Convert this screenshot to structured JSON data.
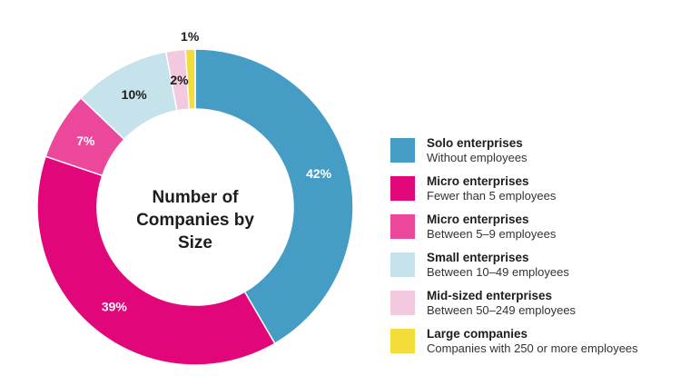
{
  "chart_data": {
    "type": "pie",
    "title": "Number of Companies by Size",
    "categories": [
      "Solo enterprises",
      "Micro enterprises",
      "Micro enterprises",
      "Small enterprises",
      "Mid-sized enterprises",
      "Large companies"
    ],
    "values": [
      42,
      39,
      7,
      10,
      2,
      1
    ],
    "value_labels": [
      "42%",
      "39%",
      "7%",
      "10%",
      "2%",
      "1%"
    ],
    "colors": [
      "#459dc5",
      "#e2067b",
      "#eb479b",
      "#c6e2ea",
      "#f3c9df",
      "#f4dc3b"
    ],
    "label_colors": [
      "#ffffff",
      "#ffffff",
      "#ffffff",
      "#1d1d1d",
      "#1d1d1d",
      "#1d1d1d"
    ],
    "legend_placement": "right",
    "legend": [
      {
        "title": "Solo enterprises",
        "subtitle": "Without employees",
        "color": "#459dc5"
      },
      {
        "title": "Micro enterprises",
        "subtitle": "Fewer than 5 employees",
        "color": "#e2067b"
      },
      {
        "title": "Micro enterprises",
        "subtitle": "Between 5–9 employees",
        "color": "#eb479b"
      },
      {
        "title": "Small enterprises",
        "subtitle": "Between 10–49 employees",
        "color": "#c6e2ea"
      },
      {
        "title": "Mid-sized enterprises",
        "subtitle": "Between 50–249 employees",
        "color": "#f3c9df"
      },
      {
        "title": "Large companies",
        "subtitle": "Companies with 250 or more employees",
        "color": "#f4dc3b"
      }
    ]
  }
}
